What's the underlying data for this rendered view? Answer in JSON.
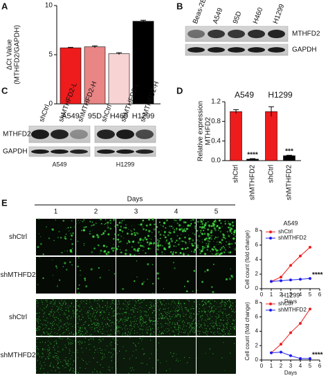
{
  "panel_labels": [
    "A",
    "B",
    "C",
    "D",
    "E"
  ],
  "chart_data": [
    {
      "type": "bar",
      "ylabel": [
        "ΔCt Value",
        "(MTHFD2/GAPDH)"
      ],
      "categories": [
        "A549",
        "95D",
        "H460",
        "H1299"
      ],
      "values": [
        5.7,
        5.8,
        5.1,
        8.4
      ],
      "errors": [
        0.05,
        0.1,
        0.1,
        0.1
      ],
      "colors": [
        "#ee1c1c",
        "#e98585",
        "#f8d3d3",
        "#000000"
      ],
      "ylim": [
        0,
        10
      ],
      "yticks": [
        0,
        5,
        10
      ]
    },
    {
      "type": "bar",
      "ylabel": [
        "Relative expression",
        "MTHFD2"
      ],
      "group_labels": [
        "A549",
        "H1299"
      ],
      "categories": [
        "shCtrl",
        "shMTHFD2",
        "shCtrl",
        "shMTHFD2"
      ],
      "values": [
        1.0,
        0.03,
        1.0,
        0.1
      ],
      "errors": [
        0.04,
        0.01,
        0.1,
        0.01
      ],
      "colors": [
        "#ee1c1c",
        "#000000",
        "#ee1c1c",
        "#000000"
      ],
      "annotations": [
        {
          "index": 1,
          "text": "****"
        },
        {
          "index": 3,
          "text": "***"
        }
      ],
      "ylim": [
        0,
        1.2
      ],
      "yticks": [
        {
          "value": 0,
          "label": "0.0"
        },
        {
          "value": 0.4,
          "label": "0.4"
        },
        {
          "value": 0.8,
          "label": "0.8"
        },
        {
          "value": 1.2,
          "label": "1.2"
        }
      ]
    },
    {
      "type": "line",
      "title": "A549",
      "xlabel": "Days",
      "ylabel": "Cell count (fold change)",
      "x": [
        1,
        2,
        3,
        4,
        5
      ],
      "series": [
        {
          "name": "shCtrl",
          "color": "#ee1c1c",
          "values": [
            1.0,
            1.6,
            3.2,
            4.5,
            5.7
          ]
        },
        {
          "name": "shMTHFD2",
          "color": "#1c1cee",
          "values": [
            1.0,
            1.1,
            1.2,
            1.3,
            1.4
          ]
        }
      ],
      "annotation": "****",
      "xlim": [
        0,
        6
      ],
      "xticks": [
        0,
        1,
        2,
        3,
        4,
        5,
        6
      ],
      "ylim": [
        0,
        8
      ],
      "yticks": [
        0,
        2,
        4,
        6,
        8
      ],
      "legend": "upper left"
    },
    {
      "type": "line",
      "title": "H1299",
      "xlabel": "Days",
      "ylabel": "Cell count (fold change)",
      "x": [
        1,
        2,
        3,
        4,
        5
      ],
      "series": [
        {
          "name": "shCtrl",
          "color": "#ee1c1c",
          "values": [
            1.0,
            2.2,
            3.8,
            5.1,
            7.1
          ]
        },
        {
          "name": "shMTHFD2",
          "color": "#1c1cee",
          "values": [
            1.0,
            1.1,
            0.6,
            0.2,
            0.2
          ]
        }
      ],
      "annotation": "****",
      "xlim": [
        0,
        6
      ],
      "xticks": [
        0,
        1,
        2,
        3,
        4,
        5,
        6
      ],
      "ylim": [
        0,
        8
      ],
      "yticks": [
        0,
        2,
        4,
        6,
        8
      ],
      "legend": "upper left"
    }
  ],
  "blots": {
    "B": {
      "lanes": [
        "Beas-2B",
        "A549",
        "95D",
        "H460",
        "H1299"
      ],
      "bands": [
        "MTHFD2",
        "GAPDH"
      ]
    },
    "C": {
      "lanes": [
        "shCtrl",
        "shMTHFD2-L",
        "shMTHFD2-H",
        "shCtrl",
        "shMTHFD2-L",
        "shMTHFD2-H"
      ],
      "groups": [
        "A549",
        "H1299"
      ],
      "bands": [
        "MTHFD2",
        "GAPDH"
      ]
    }
  },
  "images": {
    "header": "Days",
    "columns": [
      1,
      2,
      3,
      4,
      5
    ],
    "rows": [
      "shCtrl",
      "shMTHFD2",
      "shCtrl",
      "shMTHFD2"
    ]
  }
}
